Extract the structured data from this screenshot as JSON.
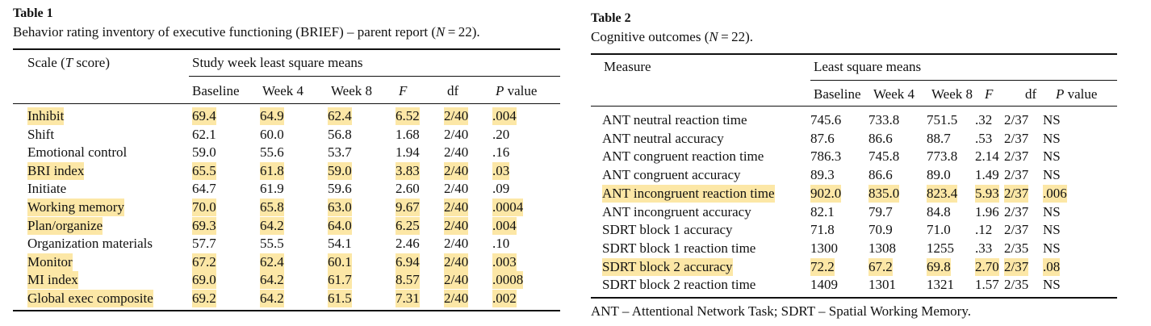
{
  "table1": {
    "title": "Table 1",
    "caption": "Behavior rating inventory of executive functioning (BRIEF) – parent report (N = 22).",
    "header_scale": "Scale (T score)",
    "header_group": "Study week least square means",
    "columns": [
      "Baseline",
      "Week 4",
      "Week 8",
      "F",
      "df",
      "P value"
    ],
    "rows": [
      {
        "label": "Inhibit",
        "values": [
          "69.4",
          "64.9",
          "62.4",
          "6.52",
          "2/40",
          ".004"
        ],
        "highlight": true
      },
      {
        "label": "Shift",
        "values": [
          "62.1",
          "60.0",
          "56.8",
          "1.68",
          "2/40",
          ".20"
        ],
        "highlight": false
      },
      {
        "label": "Emotional control",
        "values": [
          "59.0",
          "55.6",
          "53.7",
          "1.94",
          "2/40",
          ".16"
        ],
        "highlight": false
      },
      {
        "label": "BRI index",
        "values": [
          "65.5",
          "61.8",
          "59.0",
          "3.83",
          "2/40",
          ".03"
        ],
        "highlight": true
      },
      {
        "label": "Initiate",
        "values": [
          "64.7",
          "61.9",
          "59.6",
          "2.60",
          "2/40",
          ".09"
        ],
        "highlight": false
      },
      {
        "label": "Working memory",
        "values": [
          "70.0",
          "65.8",
          "63.0",
          "9.67",
          "2/40",
          ".0004"
        ],
        "highlight": true
      },
      {
        "label": "Plan/organize",
        "values": [
          "69.3",
          "64.2",
          "64.0",
          "6.25",
          "2/40",
          ".004"
        ],
        "highlight": true
      },
      {
        "label": "Organization materials",
        "values": [
          "57.7",
          "55.5",
          "54.1",
          "2.46",
          "2/40",
          ".10"
        ],
        "highlight": false
      },
      {
        "label": "Monitor",
        "values": [
          "67.2",
          "62.4",
          "60.1",
          "6.94",
          "2/40",
          ".003"
        ],
        "highlight": true
      },
      {
        "label": "MI index",
        "values": [
          "69.0",
          "64.2",
          "61.7",
          "8.57",
          "2/40",
          ".0008"
        ],
        "highlight": true
      },
      {
        "label": "Global exec composite",
        "values": [
          "69.2",
          "64.2",
          "61.5",
          "7.31",
          "2/40",
          ".002"
        ],
        "highlight": true
      }
    ]
  },
  "table2": {
    "title": "Table 2",
    "caption": "Cognitive outcomes (N = 22).",
    "header_measure": "Measure",
    "header_group": "Least square means",
    "columns": [
      "Baseline",
      "Week 4",
      "Week 8",
      "F",
      "df",
      "P value"
    ],
    "rows": [
      {
        "label": "ANT neutral reaction time",
        "values": [
          "745.6",
          "733.8",
          "751.5",
          ".32",
          "2/37",
          "NS"
        ],
        "highlight": false
      },
      {
        "label": "ANT neutral accuracy",
        "values": [
          "87.6",
          "86.6",
          "88.7",
          ".53",
          "2/37",
          "NS"
        ],
        "highlight": false
      },
      {
        "label": "ANT congruent reaction time",
        "values": [
          "786.3",
          "745.8",
          "773.8",
          "2.14",
          "2/37",
          "NS"
        ],
        "highlight": false
      },
      {
        "label": "ANT congruent accuracy",
        "values": [
          "89.3",
          "86.6",
          "89.0",
          "1.49",
          "2/37",
          "NS"
        ],
        "highlight": false
      },
      {
        "label": "ANT incongruent reaction time",
        "values": [
          "902.0",
          "835.0",
          "823.4",
          "5.93",
          "2/37",
          ".006"
        ],
        "highlight": true
      },
      {
        "label": "ANT incongruent accuracy",
        "values": [
          "82.1",
          "79.7",
          "84.8",
          "1.96",
          "2/37",
          "NS"
        ],
        "highlight": false
      },
      {
        "label": "SDRT block 1 accuracy",
        "values": [
          "71.8",
          "70.9",
          "71.0",
          ".12",
          "2/37",
          "NS"
        ],
        "highlight": false
      },
      {
        "label": "SDRT block 1 reaction time",
        "values": [
          "1300",
          "1308",
          "1255",
          ".33",
          "2/35",
          "NS"
        ],
        "highlight": false
      },
      {
        "label": "SDRT block 2 accuracy",
        "values": [
          "72.2",
          "67.2",
          "69.8",
          "2.70",
          "2/37",
          ".08"
        ],
        "highlight": true
      },
      {
        "label": "SDRT block 2 reaction time",
        "values": [
          "1409",
          "1301",
          "1321",
          "1.57",
          "2/35",
          "NS"
        ],
        "highlight": false
      }
    ],
    "footnote": "ANT – Attentional Network Task; SDRT – Spatial Working Memory."
  },
  "colors": {
    "highlight": "#fce7a6",
    "text": "#111111",
    "rule": "#111111"
  }
}
